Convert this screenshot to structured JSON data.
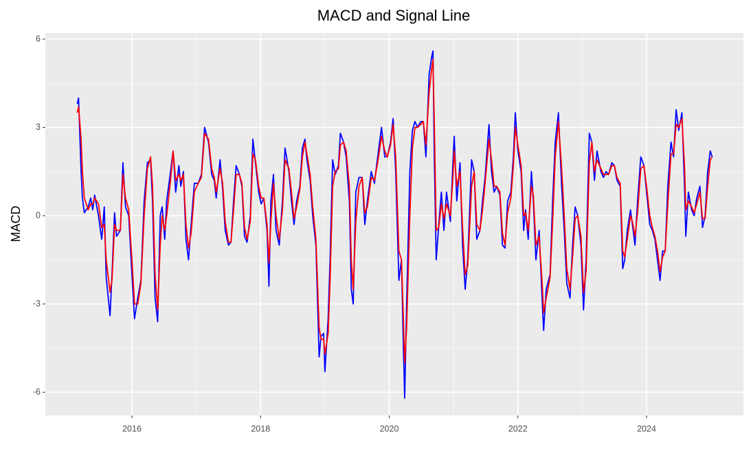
{
  "chart_data": {
    "type": "line",
    "title": "MACD and Signal Line",
    "y_label": "MACD",
    "x": [
      2015.15,
      2015.17,
      2015.21,
      2015.23,
      2015.26,
      2015.32,
      2015.36,
      2015.39,
      2015.42,
      2015.48,
      2015.53,
      2015.57,
      2015.6,
      2015.66,
      2015.69,
      2015.73,
      2015.76,
      2015.82,
      2015.86,
      2015.9,
      2015.95,
      2016.0,
      2016.04,
      2016.09,
      2016.14,
      2016.19,
      2016.24,
      2016.29,
      2016.32,
      2016.36,
      2016.4,
      2016.44,
      2016.47,
      2016.51,
      2016.54,
      2016.6,
      2016.64,
      2016.68,
      2016.73,
      2016.76,
      2016.8,
      2016.84,
      2016.88,
      2016.92,
      2016.97,
      2017.03,
      2017.08,
      2017.13,
      2017.19,
      2017.24,
      2017.28,
      2017.31,
      2017.37,
      2017.41,
      2017.45,
      2017.5,
      2017.54,
      2017.58,
      2017.62,
      2017.67,
      2017.71,
      2017.75,
      2017.79,
      2017.84,
      2017.88,
      2017.92,
      2017.97,
      2018.01,
      2018.05,
      2018.1,
      2018.13,
      2018.16,
      2018.2,
      2018.24,
      2018.29,
      2018.34,
      2018.38,
      2018.44,
      2018.48,
      2018.52,
      2018.56,
      2018.61,
      2018.65,
      2018.69,
      2018.72,
      2018.77,
      2018.81,
      2018.86,
      2018.91,
      2018.94,
      2018.98,
      2019.0,
      2019.05,
      2019.08,
      2019.12,
      2019.16,
      2019.21,
      2019.24,
      2019.29,
      2019.33,
      2019.38,
      2019.41,
      2019.44,
      2019.48,
      2019.53,
      2019.58,
      2019.62,
      2019.66,
      2019.72,
      2019.77,
      2019.82,
      2019.88,
      2019.93,
      2019.97,
      2020.02,
      2020.06,
      2020.1,
      2020.15,
      2020.19,
      2020.22,
      2020.24,
      2020.27,
      2020.32,
      2020.36,
      2020.4,
      2020.44,
      2020.49,
      2020.53,
      2020.57,
      2020.62,
      2020.66,
      2020.68,
      2020.7,
      2020.73,
      2020.77,
      2020.81,
      2020.85,
      2020.89,
      2020.95,
      2020.99,
      2021.01,
      2021.05,
      2021.1,
      2021.14,
      2021.18,
      2021.22,
      2021.28,
      2021.32,
      2021.36,
      2021.41,
      2021.45,
      2021.49,
      2021.55,
      2021.59,
      2021.63,
      2021.67,
      2021.72,
      2021.76,
      2021.8,
      2021.84,
      2021.89,
      2021.93,
      2021.96,
      2022.0,
      2022.05,
      2022.09,
      2022.12,
      2022.16,
      2022.21,
      2022.24,
      2022.28,
      2022.33,
      2022.38,
      2022.4,
      2022.44,
      2022.5,
      2022.54,
      2022.58,
      2022.63,
      2022.68,
      2022.72,
      2022.76,
      2022.81,
      2022.85,
      2022.89,
      2022.93,
      2022.98,
      2023.02,
      2023.06,
      2023.11,
      2023.15,
      2023.19,
      2023.23,
      2023.29,
      2023.33,
      2023.37,
      2023.41,
      2023.46,
      2023.5,
      2023.54,
      2023.59,
      2023.63,
      2023.66,
      2023.7,
      2023.75,
      2023.78,
      2023.82,
      2023.86,
      2023.91,
      2023.96,
      2024.0,
      2024.05,
      2024.09,
      2024.13,
      2024.17,
      2024.21,
      2024.25,
      2024.29,
      2024.33,
      2024.38,
      2024.42,
      2024.46,
      2024.5,
      2024.55,
      2024.59,
      2024.61,
      2024.65,
      2024.7,
      2024.74,
      2024.78,
      2024.83,
      2024.87,
      2024.91,
      2024.95,
      2024.99,
      2025.02
    ],
    "series": [
      {
        "color": "#0000ff",
        "values": [
          3.8,
          4.0,
          1.5,
          0.6,
          0.1,
          0.3,
          0.6,
          0.2,
          0.7,
          0.0,
          -0.8,
          0.3,
          -2.1,
          -3.4,
          -2.0,
          0.1,
          -0.7,
          -0.5,
          1.8,
          0.3,
          0.0,
          -2.0,
          -3.5,
          -2.8,
          -2.2,
          0.5,
          1.8,
          1.9,
          0.5,
          -2.8,
          -3.6,
          0.0,
          0.3,
          -0.8,
          0.5,
          1.5,
          2.2,
          0.8,
          1.7,
          1.0,
          1.5,
          -0.8,
          -1.5,
          -0.3,
          1.1,
          1.1,
          1.4,
          3.0,
          2.5,
          1.4,
          1.2,
          0.6,
          1.9,
          0.9,
          -0.5,
          -1.0,
          -0.9,
          0.5,
          1.7,
          1.4,
          1.0,
          -0.7,
          -0.9,
          0.0,
          2.6,
          1.8,
          0.8,
          0.4,
          0.6,
          -0.5,
          -2.4,
          0.5,
          1.4,
          -0.5,
          -1.0,
          0.5,
          2.3,
          1.5,
          0.5,
          -0.3,
          0.5,
          1.0,
          2.3,
          2.6,
          1.9,
          1.2,
          0.0,
          -1.0,
          -4.8,
          -4.1,
          -4.0,
          -5.3,
          -3.5,
          -1.5,
          1.9,
          1.4,
          1.7,
          2.8,
          2.5,
          2.0,
          0.5,
          -2.5,
          -3.0,
          0.8,
          1.3,
          1.3,
          -0.3,
          0.5,
          1.5,
          1.1,
          2.0,
          3.0,
          2.0,
          2.0,
          2.5,
          3.3,
          1.5,
          -2.2,
          -1.5,
          -4.5,
          -6.2,
          -3.0,
          1.5,
          2.9,
          3.2,
          3.0,
          3.2,
          3.2,
          2.0,
          4.8,
          5.4,
          5.6,
          2.0,
          -1.5,
          -0.3,
          0.8,
          -0.5,
          0.8,
          -0.2,
          1.8,
          2.7,
          0.5,
          1.8,
          -1.0,
          -2.5,
          -1.5,
          1.9,
          1.5,
          -0.8,
          -0.5,
          0.5,
          1.3,
          3.1,
          1.5,
          0.8,
          1.0,
          0.7,
          -1.0,
          -1.1,
          0.5,
          0.8,
          2.0,
          3.5,
          2.2,
          1.5,
          -0.5,
          0.2,
          -0.8,
          1.5,
          0.5,
          -1.5,
          -0.5,
          -3.0,
          -3.9,
          -2.5,
          -2.0,
          0.5,
          2.5,
          3.5,
          1.0,
          -0.5,
          -2.3,
          -2.8,
          -1.0,
          0.3,
          0.0,
          -1.0,
          -3.2,
          -1.5,
          2.8,
          2.5,
          1.2,
          2.2,
          1.5,
          1.3,
          1.5,
          1.4,
          1.8,
          1.7,
          1.2,
          1.0,
          -1.8,
          -1.5,
          -0.5,
          0.2,
          -0.3,
          -1.0,
          0.5,
          2.0,
          1.7,
          0.8,
          -0.3,
          -0.5,
          -0.8,
          -1.5,
          -2.2,
          -1.2,
          -1.2,
          1.0,
          2.5,
          2.0,
          3.6,
          2.9,
          3.5,
          1.0,
          -0.7,
          0.8,
          0.2,
          0.0,
          0.6,
          1.0,
          -0.4,
          0.0,
          1.5,
          2.2,
          2.0
        ]
      },
      {
        "color": "#ff0000",
        "values": [
          3.5,
          3.7,
          2.6,
          1.5,
          0.6,
          0.2,
          0.4,
          0.4,
          0.6,
          0.4,
          -0.4,
          -0.3,
          -1.5,
          -2.6,
          -2.2,
          -0.3,
          -0.5,
          -0.5,
          1.4,
          0.6,
          0.2,
          -1.5,
          -3.0,
          -3.0,
          -2.3,
          0.0,
          1.6,
          2.0,
          1.0,
          -2.0,
          -3.2,
          -1.0,
          0.0,
          -0.5,
          0.0,
          1.2,
          2.2,
          1.2,
          1.4,
          1.2,
          1.4,
          -0.3,
          -1.1,
          -0.6,
          0.8,
          1.1,
          1.3,
          2.8,
          2.6,
          1.6,
          1.3,
          0.8,
          1.6,
          1.1,
          -0.2,
          -0.9,
          -0.9,
          0.2,
          1.4,
          1.4,
          1.1,
          -0.4,
          -0.8,
          -0.2,
          2.1,
          1.9,
          1.0,
          0.6,
          0.6,
          -0.3,
          -1.6,
          -0.2,
          1.1,
          0.0,
          -0.8,
          0.2,
          1.9,
          1.6,
          0.8,
          -0.1,
          0.3,
          0.9,
          2.0,
          2.5,
          2.1,
          1.4,
          0.3,
          -0.8,
          -3.8,
          -4.2,
          -4.2,
          -4.7,
          -4.0,
          -2.2,
          1.0,
          1.5,
          1.6,
          2.4,
          2.5,
          2.2,
          1.0,
          -1.5,
          -2.5,
          -0.2,
          1.0,
          1.3,
          0.1,
          0.3,
          1.3,
          1.2,
          1.8,
          2.7,
          2.2,
          2.0,
          2.4,
          3.1,
          2.0,
          -1.2,
          -1.5,
          -3.5,
          -5.0,
          -3.8,
          0.0,
          2.3,
          3.0,
          3.0,
          3.1,
          3.2,
          2.4,
          4.2,
          5.0,
          5.3,
          3.2,
          -0.5,
          -0.4,
          0.4,
          -0.1,
          0.4,
          0.0,
          1.3,
          2.2,
          1.0,
          1.5,
          -0.4,
          -2.0,
          -1.7,
          1.0,
          1.5,
          -0.3,
          -0.5,
          0.2,
          1.1,
          2.6,
          1.9,
          1.0,
          1.0,
          0.8,
          -0.6,
          -1.0,
          0.1,
          0.6,
          1.7,
          3.0,
          2.4,
          1.7,
          0.0,
          0.1,
          -0.5,
          1.0,
          0.7,
          -1.0,
          -0.7,
          -2.4,
          -3.3,
          -2.8,
          -2.1,
          -0.2,
          2.0,
          3.2,
          1.6,
          0.0,
          -1.8,
          -2.5,
          -1.4,
          -0.1,
          0.0,
          -0.7,
          -2.6,
          -1.9,
          1.8,
          2.5,
          1.5,
          1.9,
          1.6,
          1.4,
          1.4,
          1.4,
          1.7,
          1.7,
          1.3,
          1.1,
          -1.2,
          -1.4,
          -0.8,
          0.0,
          -0.2,
          -0.7,
          0.1,
          1.6,
          1.7,
          1.0,
          0.0,
          -0.4,
          -0.7,
          -1.2,
          -1.9,
          -1.4,
          -1.2,
          0.4,
          2.1,
          2.1,
          3.1,
          3.0,
          3.3,
          1.7,
          0.2,
          0.5,
          0.3,
          0.1,
          0.4,
          0.8,
          -0.1,
          -0.1,
          1.0,
          1.9,
          2.0
        ]
      }
    ],
    "xlim": [
      2014.654,
      2025.506
    ],
    "xticks": [
      2016,
      2018,
      2020,
      2022,
      2024
    ],
    "ylim": [
      -6.79,
      6.21
    ],
    "yticks": [
      -6,
      -3,
      0,
      3,
      6
    ],
    "grid": true
  }
}
